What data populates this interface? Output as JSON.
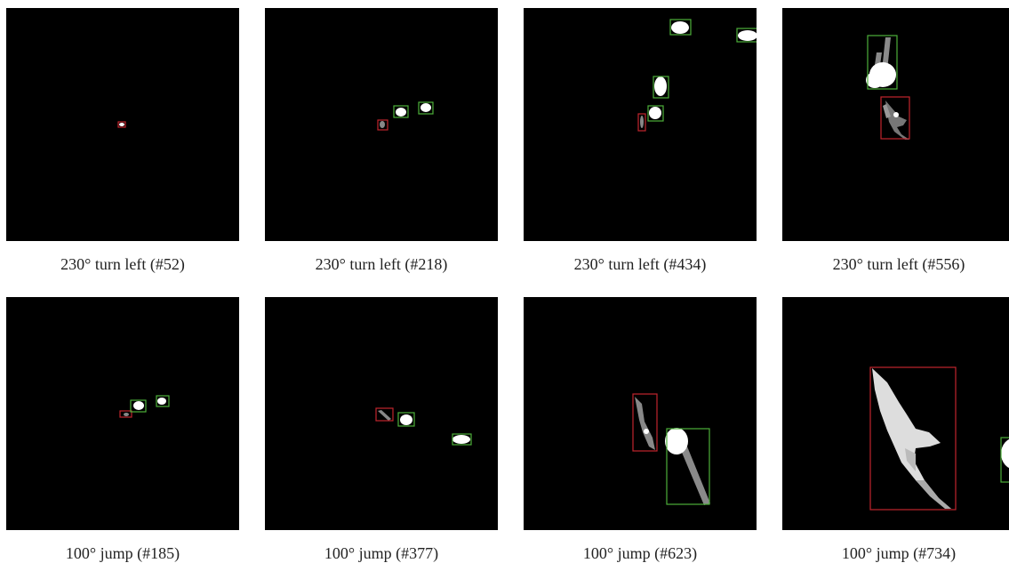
{
  "panels": [
    {
      "caption": "230° turn left (#52)"
    },
    {
      "caption": "230° turn left (#218)"
    },
    {
      "caption": "230° turn left (#434)"
    },
    {
      "caption": "230° turn left (#556)"
    },
    {
      "caption": "100° jump (#185)"
    },
    {
      "caption": "100° jump (#377)"
    },
    {
      "caption": "100° jump (#623)"
    },
    {
      "caption": "100° jump (#734)"
    }
  ],
  "colors": {
    "background": "#000000",
    "target_box": "#c0262d",
    "other_box": "#4caf3a",
    "object": "#ffffff",
    "object_gray": "#8a8a8a"
  }
}
